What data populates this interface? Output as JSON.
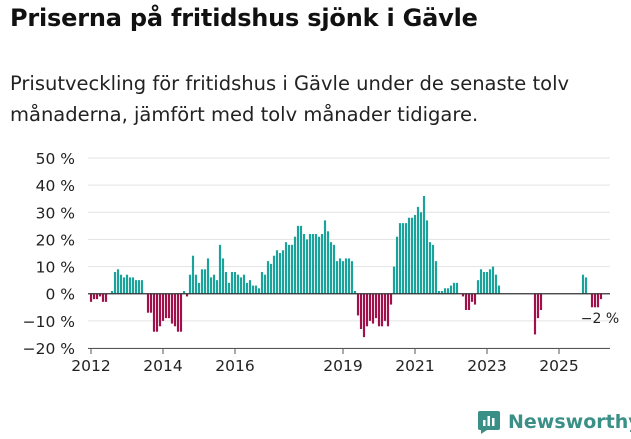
{
  "title": "Priserna på fritidshus sjönk i Gävle",
  "subtitle": "Prisutveckling för fritidshus i Gävle under de senaste tolv månaderna, jämfört med tolv månader tidigare.",
  "brand": "Newsworthy",
  "colors": {
    "positive": "#1aa39a",
    "negative": "#a0104a",
    "grid": "#e3e3e3",
    "text": "#222222",
    "brand": "#3a8f86"
  },
  "chart_data": {
    "type": "bar",
    "x_start": "2011-12",
    "x_end": "2026-06",
    "ylim": [
      -20,
      50
    ],
    "yticks": [
      -20,
      -10,
      0,
      10,
      20,
      30,
      40,
      50
    ],
    "ytick_labels": [
      "−20 %",
      "−10 %",
      "0 %",
      "10 %",
      "20 %",
      "30 %",
      "40 %",
      "50 %"
    ],
    "xticks": [
      "2012-01",
      "2014-01",
      "2016-01",
      "2019-01",
      "2021-01",
      "2023-01",
      "2025-01"
    ],
    "xtick_labels": [
      "2012",
      "2014",
      "2016",
      "2019",
      "2021",
      "2023",
      "2025"
    ],
    "annotation": {
      "date": "2025-12",
      "text": "−2 %"
    },
    "series": [
      {
        "values": [
          [
            "2012-01",
            -3
          ],
          [
            "2012-02",
            -2
          ],
          [
            "2012-03",
            -2
          ],
          [
            "2012-04",
            -1
          ],
          [
            "2012-05",
            -3
          ],
          [
            "2012-06",
            -3
          ],
          [
            "2012-07",
            0
          ],
          [
            "2012-08",
            1
          ],
          [
            "2012-09",
            8
          ],
          [
            "2012-10",
            9
          ],
          [
            "2012-11",
            7
          ],
          [
            "2012-12",
            6
          ],
          [
            "2013-01",
            7
          ],
          [
            "2013-02",
            6
          ],
          [
            "2013-03",
            6
          ],
          [
            "2013-04",
            5
          ],
          [
            "2013-05",
            5
          ],
          [
            "2013-06",
            5
          ],
          [
            "2013-07",
            0
          ],
          [
            "2013-08",
            -7
          ],
          [
            "2013-09",
            -7
          ],
          [
            "2013-10",
            -14
          ],
          [
            "2013-11",
            -14
          ],
          [
            "2013-12",
            -12
          ],
          [
            "2014-01",
            -10
          ],
          [
            "2014-02",
            -9
          ],
          [
            "2014-03",
            -9
          ],
          [
            "2014-04",
            -11
          ],
          [
            "2014-05",
            -12
          ],
          [
            "2014-06",
            -14
          ],
          [
            "2014-07",
            -14
          ],
          [
            "2014-08",
            1
          ],
          [
            "2014-09",
            -1
          ],
          [
            "2014-10",
            7
          ],
          [
            "2014-11",
            14
          ],
          [
            "2014-12",
            7
          ],
          [
            "2015-01",
            4
          ],
          [
            "2015-02",
            9
          ],
          [
            "2015-03",
            9
          ],
          [
            "2015-04",
            13
          ],
          [
            "2015-05",
            6
          ],
          [
            "2015-06",
            7
          ],
          [
            "2015-07",
            5
          ],
          [
            "2015-08",
            18
          ],
          [
            "2015-09",
            13
          ],
          [
            "2015-10",
            8
          ],
          [
            "2015-11",
            4
          ],
          [
            "2015-12",
            8
          ],
          [
            "2016-01",
            8
          ],
          [
            "2016-02",
            7
          ],
          [
            "2016-03",
            6
          ],
          [
            "2016-04",
            7
          ],
          [
            "2016-05",
            4
          ],
          [
            "2016-06",
            5
          ],
          [
            "2016-07",
            3
          ],
          [
            "2016-08",
            3
          ],
          [
            "2016-09",
            2
          ],
          [
            "2016-10",
            8
          ],
          [
            "2016-11",
            7
          ],
          [
            "2016-12",
            12
          ],
          [
            "2017-01",
            11
          ],
          [
            "2017-02",
            14
          ],
          [
            "2017-03",
            16
          ],
          [
            "2017-04",
            15
          ],
          [
            "2017-05",
            16
          ],
          [
            "2017-06",
            19
          ],
          [
            "2017-07",
            18
          ],
          [
            "2017-08",
            18
          ],
          [
            "2017-09",
            21
          ],
          [
            "2017-10",
            25
          ],
          [
            "2017-11",
            25
          ],
          [
            "2017-12",
            22
          ],
          [
            "2018-01",
            20
          ],
          [
            "2018-02",
            22
          ],
          [
            "2018-03",
            22
          ],
          [
            "2018-04",
            22
          ],
          [
            "2018-05",
            21
          ],
          [
            "2018-06",
            22
          ],
          [
            "2018-07",
            27
          ],
          [
            "2018-08",
            23
          ],
          [
            "2018-09",
            19
          ],
          [
            "2018-10",
            18
          ],
          [
            "2018-11",
            12
          ],
          [
            "2018-12",
            13
          ],
          [
            "2019-01",
            12
          ],
          [
            "2019-02",
            13
          ],
          [
            "2019-03",
            13
          ],
          [
            "2019-04",
            12
          ],
          [
            "2019-05",
            1
          ],
          [
            "2019-06",
            -8
          ],
          [
            "2019-07",
            -13
          ],
          [
            "2019-08",
            -16
          ],
          [
            "2019-09",
            -12
          ],
          [
            "2019-10",
            -10
          ],
          [
            "2019-11",
            -11
          ],
          [
            "2019-12",
            -9
          ],
          [
            "2020-01",
            -12
          ],
          [
            "2020-02",
            -12
          ],
          [
            "2020-03",
            -10
          ],
          [
            "2020-04",
            -12
          ],
          [
            "2020-05",
            -4
          ],
          [
            "2020-06",
            10
          ],
          [
            "2020-07",
            21
          ],
          [
            "2020-08",
            26
          ],
          [
            "2020-09",
            26
          ],
          [
            "2020-10",
            26
          ],
          [
            "2020-11",
            28
          ],
          [
            "2020-12",
            28
          ],
          [
            "2021-01",
            29
          ],
          [
            "2021-02",
            32
          ],
          [
            "2021-03",
            30
          ],
          [
            "2021-04",
            36
          ],
          [
            "2021-05",
            27
          ],
          [
            "2021-06",
            19
          ],
          [
            "2021-07",
            18
          ],
          [
            "2021-08",
            12
          ],
          [
            "2021-09",
            1
          ],
          [
            "2021-10",
            1
          ],
          [
            "2021-11",
            2
          ],
          [
            "2021-12",
            2
          ],
          [
            "2022-01",
            3
          ],
          [
            "2022-02",
            4
          ],
          [
            "2022-03",
            4
          ],
          [
            "2022-04",
            0
          ],
          [
            "2022-05",
            -1
          ],
          [
            "2022-06",
            -6
          ],
          [
            "2022-07",
            -6
          ],
          [
            "2022-08",
            -3
          ],
          [
            "2022-09",
            -4
          ],
          [
            "2022-10",
            5
          ],
          [
            "2022-11",
            9
          ],
          [
            "2022-12",
            8
          ],
          [
            "2023-01",
            8
          ],
          [
            "2023-02",
            9
          ],
          [
            "2023-03",
            10
          ],
          [
            "2023-04",
            7
          ],
          [
            "2023-05",
            3
          ],
          [
            "2023-06",
            0
          ],
          [
            "2023-07",
            0
          ],
          [
            "2023-08",
            0
          ],
          [
            "2023-09",
            0
          ],
          [
            "2023-10",
            0
          ],
          [
            "2023-11",
            0
          ],
          [
            "2023-12",
            0
          ],
          [
            "2024-01",
            0
          ],
          [
            "2024-02",
            0
          ],
          [
            "2024-03",
            0
          ],
          [
            "2024-04",
            0
          ],
          [
            "2024-05",
            -15
          ],
          [
            "2024-06",
            -9
          ],
          [
            "2024-07",
            -6
          ],
          [
            "2024-08",
            0
          ],
          [
            "2024-09",
            0
          ],
          [
            "2024-10",
            0
          ],
          [
            "2024-11",
            0
          ],
          [
            "2024-12",
            0
          ],
          [
            "2025-01",
            0
          ],
          [
            "2025-02",
            0
          ],
          [
            "2025-03",
            0
          ],
          [
            "2025-04",
            0
          ],
          [
            "2025-05",
            0
          ],
          [
            "2025-06",
            0
          ],
          [
            "2025-07",
            0
          ],
          [
            "2025-08",
            0
          ],
          [
            "2025-09",
            7
          ],
          [
            "2025-10",
            6
          ],
          [
            "2025-11",
            0
          ],
          [
            "2025-12",
            -5
          ],
          [
            "2026-01",
            -5
          ],
          [
            "2026-02",
            -5
          ],
          [
            "2026-03",
            -2
          ]
        ]
      }
    ]
  }
}
